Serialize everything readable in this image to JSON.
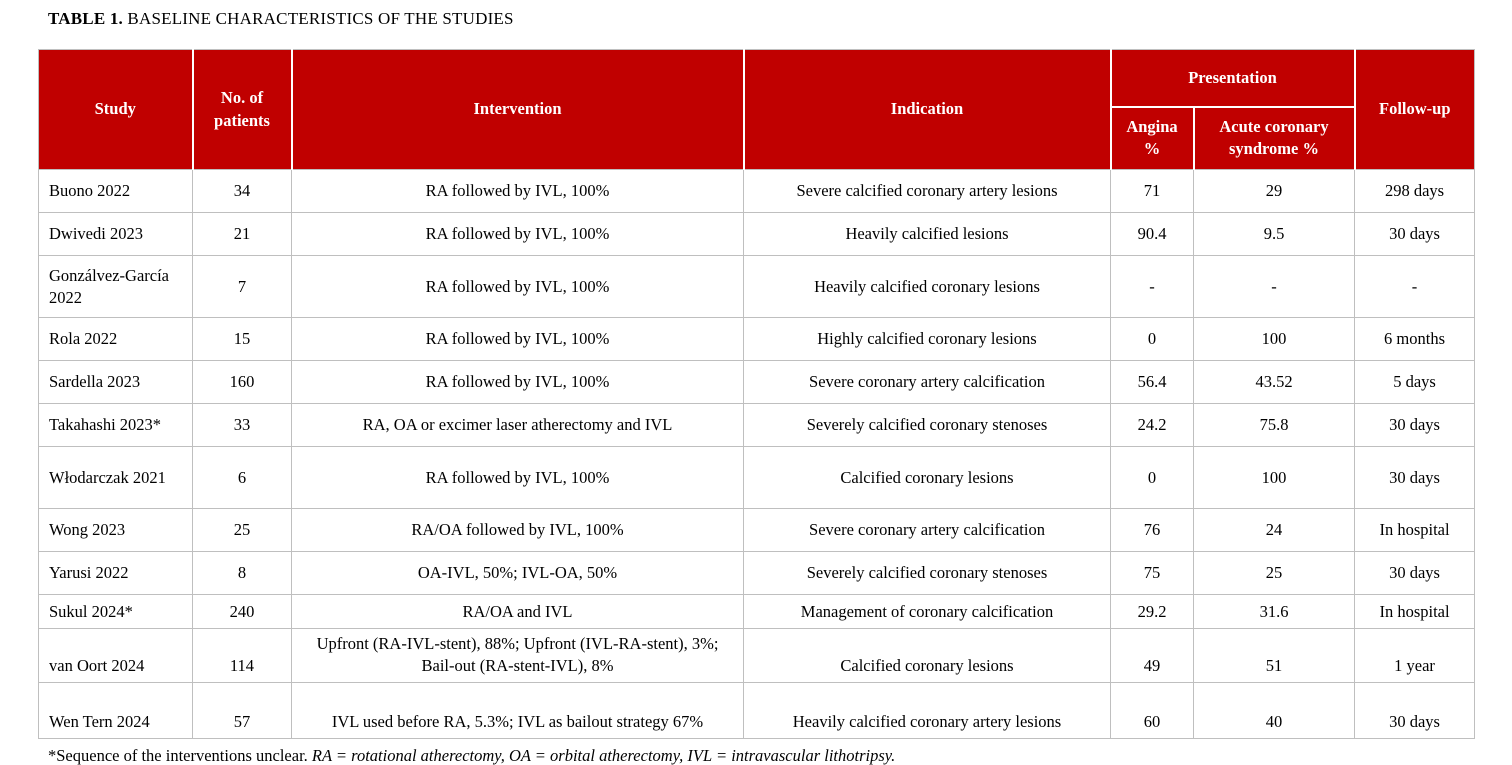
{
  "page": {
    "title_bold": "TABLE 1.",
    "title_rest": " BASELINE CHARACTERISTICS OF THE STUDIES"
  },
  "table": {
    "accent_color": "#c00000",
    "grid_color": "#bfbfbf",
    "header": {
      "study": "Study",
      "patients": "No. of patients",
      "intervention": "Intervention",
      "indication": "Indication",
      "presentation": "Presentation",
      "angina": "Angina %",
      "acs": "Acute coronary syndrome %",
      "followup": "Follow-up"
    },
    "rows": [
      {
        "study": "Buono 2022",
        "patients": "34",
        "intervention": "RA followed by IVL, 100%",
        "indication": "Severe calcified coronary artery lesions",
        "angina": "71",
        "acs": "29",
        "followup": "298 days"
      },
      {
        "study": "Dwivedi 2023",
        "patients": "21",
        "intervention": "RA followed by IVL, 100%",
        "indication": "Heavily calcified lesions",
        "angina": "90.4",
        "acs": "9.5",
        "followup": "30 days"
      },
      {
        "study": "Gonzálvez-García 2022",
        "patients": "7",
        "intervention": "RA followed by IVL, 100%",
        "indication": "Heavily calcified coronary lesions",
        "angina": "-",
        "acs": "-",
        "followup": "-"
      },
      {
        "study": "Rola 2022",
        "patients": "15",
        "intervention": "RA followed by IVL, 100%",
        "indication": "Highly calcified coronary lesions",
        "angina": "0",
        "acs": "100",
        "followup": "6 months"
      },
      {
        "study": "Sardella 2023",
        "patients": "160",
        "intervention": "RA followed by IVL, 100%",
        "indication": "Severe coronary artery calcification",
        "angina": "56.4",
        "acs": "43.52",
        "followup": "5 days"
      },
      {
        "study": "Takahashi 2023*",
        "patients": "33",
        "intervention": "RA, OA or excimer laser atherectomy and IVL",
        "indication": "Severely calcified coronary stenoses",
        "angina": "24.2",
        "acs": "75.8",
        "followup": "30 days"
      },
      {
        "study": "Włodarczak 2021",
        "patients": "6",
        "intervention": "RA followed by IVL, 100%",
        "indication": "Calcified coronary lesions",
        "angina": "0",
        "acs": "100",
        "followup": "30 days"
      },
      {
        "study": "Wong 2023",
        "patients": "25",
        "intervention": "RA/OA followed by IVL, 100%",
        "indication": "Severe coronary artery calcification",
        "angina": "76",
        "acs": "24",
        "followup": "In hospital"
      },
      {
        "study": "Yarusi 2022",
        "patients": "8",
        "intervention": "OA-IVL, 50%; IVL-OA, 50%",
        "indication": "Severely calcified coronary stenoses",
        "angina": "75",
        "acs": "25",
        "followup": "30 days"
      },
      {
        "study": "Sukul 2024*",
        "patients": "240",
        "intervention": "RA/OA and IVL",
        "indication": "Management of coronary calcification",
        "angina": "29.2",
        "acs": "31.6",
        "followup": "In hospital"
      },
      {
        "study": "van Oort 2024",
        "patients": "114",
        "intervention": "Upfront (RA-IVL-stent), 88%; Upfront (IVL-RA-stent), 3%; Bail-out (RA-stent-IVL), 8%",
        "indication": "Calcified coronary lesions",
        "angina": "49",
        "acs": "51",
        "followup": "1 year"
      },
      {
        "study": "Wen Tern 2024",
        "patients": "57",
        "intervention": "IVL used before RA, 5.3%; IVL as bailout strategy 67%",
        "indication": "Heavily calcified coronary artery lesions",
        "angina": "60",
        "acs": "40",
        "followup": "30 days"
      }
    ]
  },
  "footnote": {
    "plain": "*Sequence of the interventions unclear. ",
    "italic": "RA = rotational atherectomy, OA = orbital atherectomy, IVL = intravascular lithotripsy."
  }
}
